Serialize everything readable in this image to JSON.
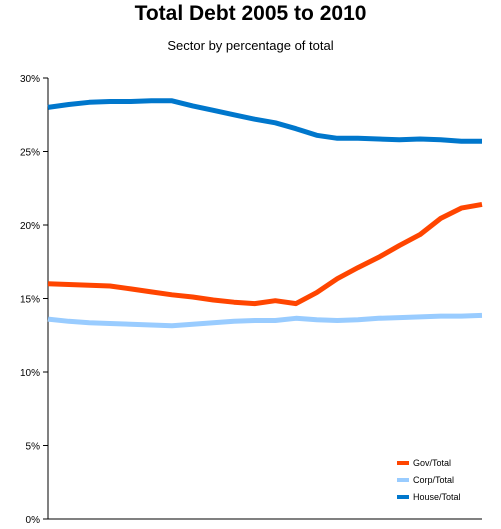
{
  "chart_data": {
    "type": "line",
    "title": "Total Debt 2005 to 2010",
    "subtitle": "Sector by percentage of total",
    "xlabel": "",
    "ylabel": "",
    "ylim": [
      0,
      30
    ],
    "yticks": [
      0,
      5,
      10,
      15,
      20,
      25,
      30
    ],
    "ytick_labels": [
      "0%",
      "5%",
      "10%",
      "15%",
      "20%",
      "25%",
      "30%"
    ],
    "grid": false,
    "legend_position": "bottom-right",
    "x": [
      0,
      1,
      2,
      3,
      4,
      5,
      6,
      7,
      8,
      9,
      10,
      11,
      12,
      13,
      14,
      15,
      16,
      17,
      18,
      19,
      20,
      21
    ],
    "series": [
      {
        "name": "Gov/Total",
        "color": "#ff4500",
        "values": [
          16.0,
          15.95,
          15.9,
          15.85,
          15.65,
          15.45,
          15.25,
          15.1,
          14.9,
          14.75,
          14.65,
          14.85,
          14.65,
          15.4,
          16.35,
          17.1,
          17.8,
          18.6,
          19.35,
          20.45,
          21.15,
          21.4
        ]
      },
      {
        "name": "Corp/Total",
        "color": "#99ccff",
        "values": [
          13.6,
          13.45,
          13.35,
          13.3,
          13.25,
          13.2,
          13.15,
          13.25,
          13.35,
          13.45,
          13.5,
          13.5,
          13.65,
          13.55,
          13.5,
          13.55,
          13.65,
          13.7,
          13.75,
          13.8,
          13.8,
          13.85
        ]
      },
      {
        "name": "House/Total",
        "color": "#0077cc",
        "values": [
          28.0,
          28.2,
          28.35,
          28.4,
          28.4,
          28.45,
          28.45,
          28.1,
          27.8,
          27.5,
          27.2,
          26.95,
          26.55,
          26.1,
          25.9,
          25.9,
          25.85,
          25.8,
          25.85,
          25.8,
          25.7,
          25.7
        ]
      }
    ]
  }
}
